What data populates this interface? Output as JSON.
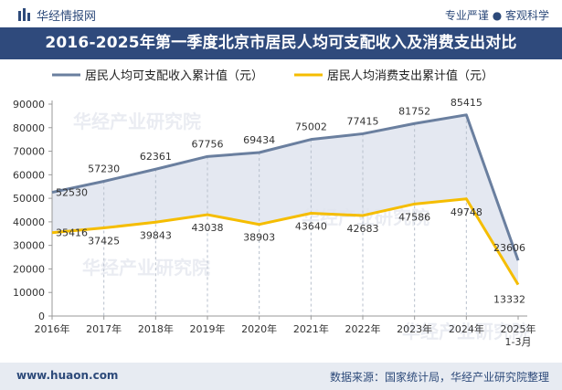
{
  "header": {
    "brand": "华经情报网",
    "tagline": "专业严谨 ● 客观科学"
  },
  "title": "2016-2025年第一季度北京市居民人均可支配收入及消费支出对比",
  "footer": {
    "url": "www.huaon.com",
    "source": "数据来源：国家统计局，华经产业研究院整理"
  },
  "watermark": "华经产业研究院",
  "colors": {
    "income": "#6a7f9f",
    "spending": "#f5bd00",
    "fill": "#dfe4ee",
    "title_bg": "#2f4a7c"
  },
  "chart_data": {
    "type": "line",
    "categories": [
      "2016年",
      "2017年",
      "2018年",
      "2019年",
      "2020年",
      "2021年",
      "2022年",
      "2023年",
      "2024年",
      "2025年\n1-3月"
    ],
    "series": [
      {
        "name": "居民人均可支配收入累计值（元）",
        "values": [
          52530,
          57230,
          62361,
          67756,
          69434,
          75002,
          77415,
          81752,
          85415,
          23606
        ]
      },
      {
        "name": "居民人均消费支出累计值（元）",
        "values": [
          35416,
          37425,
          39843,
          43038,
          38903,
          43640,
          42683,
          47586,
          49748,
          13332
        ]
      }
    ],
    "ylim": [
      0,
      90000
    ],
    "yticks": [
      0,
      10000,
      20000,
      30000,
      40000,
      50000,
      60000,
      70000,
      80000,
      90000
    ],
    "legend_position": "top",
    "grid": false
  }
}
